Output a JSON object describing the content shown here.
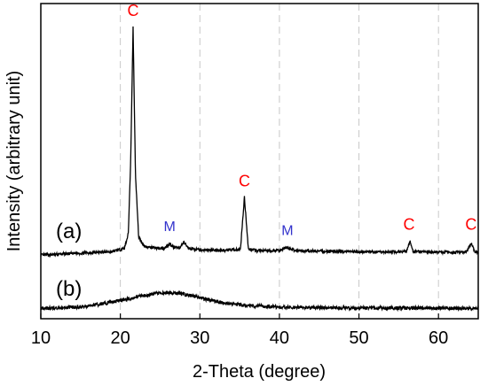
{
  "chart_data": {
    "type": "line",
    "xlabel": "2-Theta (degree)",
    "ylabel": "Intensity (arbitrary unit)",
    "xlim": [
      10,
      65
    ],
    "ylim": [
      0,
      100
    ],
    "xticks": [
      10,
      20,
      30,
      40,
      50,
      60
    ],
    "xtick_labels": [
      "10",
      "20",
      "30",
      "40",
      "50",
      "60"
    ],
    "grid": "vertical-dashed",
    "yticks_shown": false,
    "series": [
      {
        "name": "(a)",
        "color": "#000000",
        "x": [
          10,
          15,
          19,
          20.5,
          21,
          21.3,
          21.6,
          21.9,
          22.3,
          23,
          24,
          25.5,
          26.2,
          26.8,
          27.5,
          28,
          28.6,
          30,
          33,
          35.1,
          35.6,
          36.1,
          37,
          40,
          40.9,
          42,
          45,
          50,
          55,
          56,
          56.4,
          56.8,
          60,
          63.5,
          64.1,
          64.6,
          65
        ],
        "y": [
          20.2,
          20.8,
          21.3,
          22.3,
          27,
          50,
          92.5,
          46,
          26,
          23,
          22.5,
          22.3,
          23.8,
          22.4,
          22.6,
          24.2,
          22.3,
          21.8,
          21.7,
          22,
          38.5,
          22.2,
          21.6,
          21.6,
          22.6,
          21.6,
          21.4,
          21.2,
          21.2,
          21.4,
          24.7,
          21.3,
          21.1,
          21.1,
          24,
          21.1,
          21
        ]
      },
      {
        "name": "(b)",
        "color": "#000000",
        "x": [
          10,
          15,
          18,
          21,
          23,
          25,
          27,
          29,
          31,
          33,
          36,
          40,
          45,
          50,
          55,
          60,
          65
        ],
        "y": [
          3.2,
          3.8,
          4.8,
          6.3,
          7.4,
          8.2,
          8.2,
          7.3,
          6,
          5,
          4.2,
          3.7,
          3.5,
          3.4,
          3.4,
          3.3,
          3.3
        ]
      }
    ],
    "annotations": [
      {
        "text": "C",
        "x": 21.6,
        "y": 96,
        "color": "#ff0000"
      },
      {
        "text": "M",
        "x": 26.2,
        "y": 27.8,
        "color": "#3333cc"
      },
      {
        "text": "C",
        "x": 35.6,
        "y": 42,
        "color": "#ff0000"
      },
      {
        "text": "M",
        "x": 41,
        "y": 26.5,
        "color": "#3333cc"
      },
      {
        "text": "C",
        "x": 56.3,
        "y": 28.3,
        "color": "#ff0000"
      },
      {
        "text": "C",
        "x": 64.1,
        "y": 28.3,
        "color": "#ff0000"
      }
    ]
  }
}
